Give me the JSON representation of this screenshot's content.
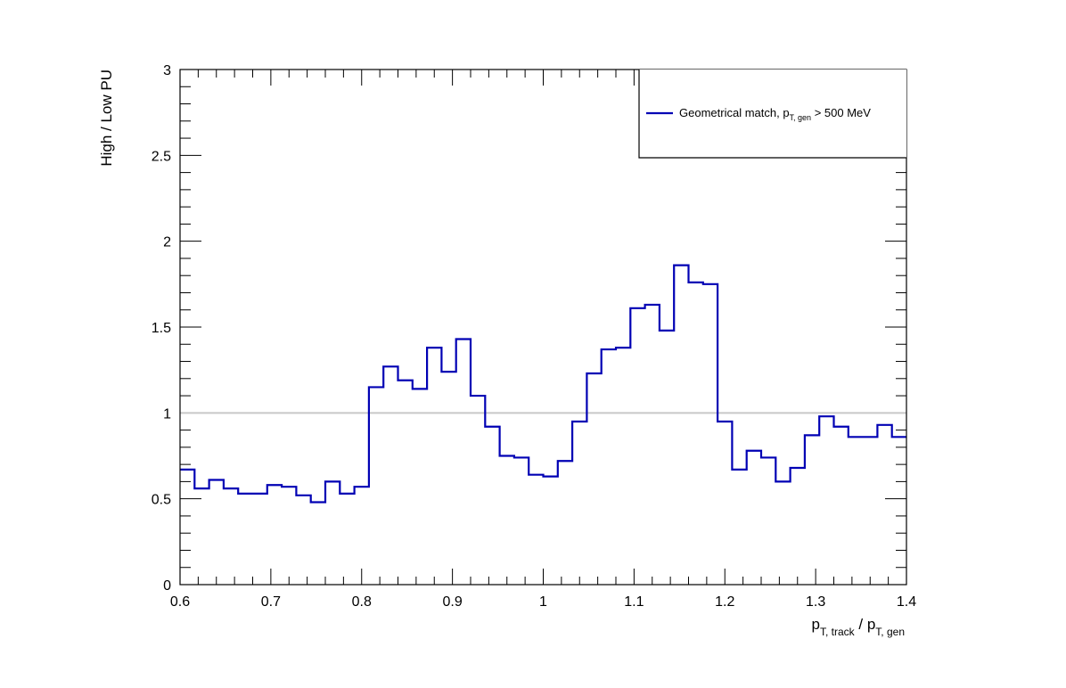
{
  "chart_data": {
    "type": "line",
    "style": "histogram-step",
    "xlim": [
      0.6,
      1.4
    ],
    "ylim": [
      0,
      3
    ],
    "xticks": [
      0.6,
      0.7,
      0.8,
      0.9,
      1,
      1.1,
      1.2,
      1.3,
      1.4
    ],
    "xtick_labels": [
      "0.6",
      "0.7",
      "0.8",
      "0.9",
      "1",
      "1.1",
      "1.2",
      "1.3",
      "1.4"
    ],
    "yticks": [
      0,
      0.5,
      1,
      1.5,
      2,
      2.5,
      3
    ],
    "ytick_labels": [
      "0",
      "0.5",
      "1",
      "1.5",
      "2",
      "2.5",
      "3"
    ],
    "ylabel": "High / Low PU",
    "xlabel": {
      "p1": "p",
      "s1": "T, track",
      "sep": " / ",
      "p2": "p",
      "s2": "T, gen"
    },
    "reference_line": {
      "y": 1,
      "color": "#c8c8c8"
    },
    "grid": false,
    "legend": {
      "position": "top-right",
      "entries": [
        {
          "pre": "Geometrical match, p",
          "sub": "T, gen",
          "post": " > 500 MeV",
          "color": "#0000b4"
        }
      ]
    },
    "bin_edges": [
      0.6,
      0.616,
      0.632,
      0.648,
      0.664,
      0.68,
      0.696,
      0.712,
      0.728,
      0.744,
      0.76,
      0.776,
      0.792,
      0.808,
      0.824,
      0.84,
      0.856,
      0.872,
      0.888,
      0.904,
      0.92,
      0.936,
      0.952,
      0.968,
      0.984,
      1.0,
      1.016,
      1.032,
      1.048,
      1.064,
      1.08,
      1.096,
      1.112,
      1.128,
      1.144,
      1.16,
      1.176,
      1.192,
      1.208,
      1.224,
      1.24,
      1.256,
      1.272,
      1.288,
      1.304,
      1.32,
      1.336,
      1.352,
      1.368,
      1.384,
      1.4
    ],
    "series": [
      {
        "color": "#0000b4",
        "values": [
          0.67,
          0.56,
          0.61,
          0.56,
          0.53,
          0.53,
          0.58,
          0.57,
          0.52,
          0.48,
          0.6,
          0.53,
          0.57,
          1.15,
          1.27,
          1.19,
          1.14,
          1.38,
          1.24,
          1.43,
          1.1,
          0.92,
          0.75,
          0.74,
          0.64,
          0.63,
          0.72,
          0.95,
          1.23,
          1.37,
          1.38,
          1.61,
          1.63,
          1.48,
          1.86,
          1.76,
          1.75,
          0.95,
          0.67,
          0.78,
          0.74,
          0.6,
          0.68,
          0.87,
          0.98,
          0.92,
          0.86,
          0.86,
          0.93,
          0.86
        ]
      }
    ]
  }
}
